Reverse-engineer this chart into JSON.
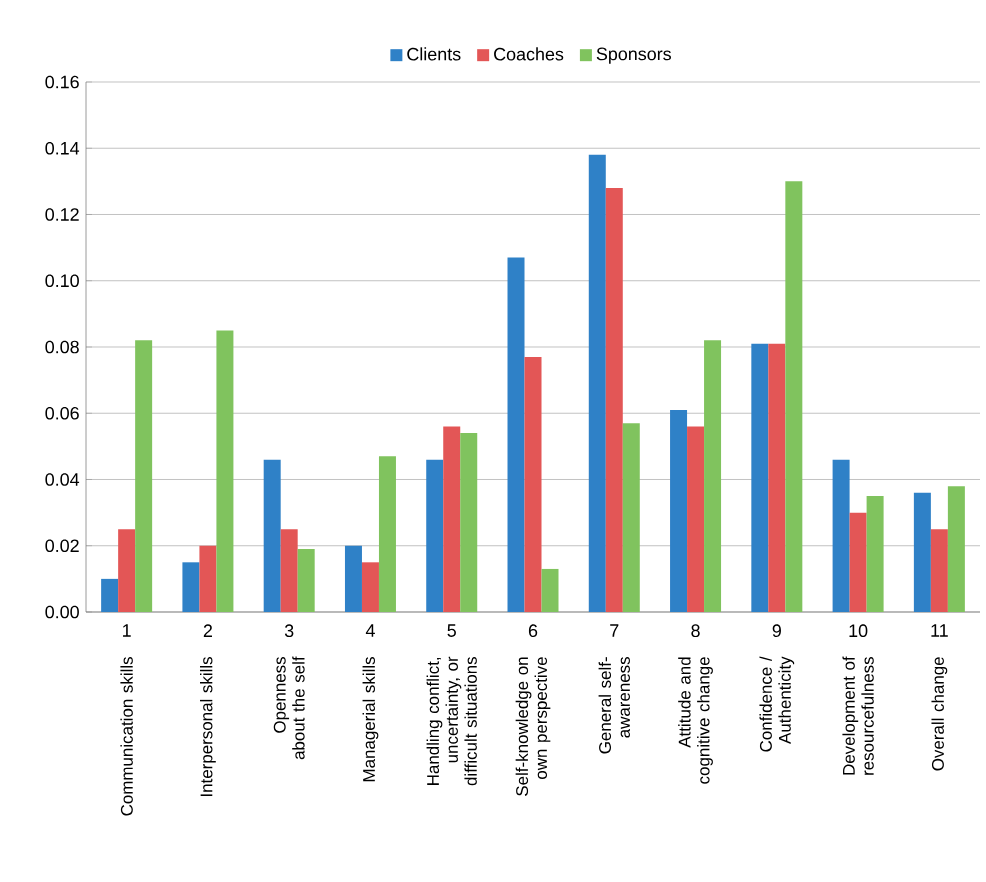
{
  "chart_data": {
    "type": "bar",
    "categories": [
      "Communication skills",
      "Interpersonal skills",
      "Openness about the self",
      "Managerial skills",
      "Handling conflict, uncertainty, or difficult situations",
      "Self-knowledge on own perspective",
      "General self-awareness",
      "Attitude and cognitive change",
      "Confidence / Authenticity",
      "Development of resourcefulness",
      "Overall change"
    ],
    "annotations": [
      "1",
      "2",
      "3",
      "4",
      "5",
      "6",
      "7",
      "8",
      "9",
      "10",
      "11"
    ],
    "series": [
      {
        "name": "Clients",
        "color": "#2f81c7",
        "values": [
          0.01,
          0.015,
          0.046,
          0.02,
          0.046,
          0.107,
          0.138,
          0.061,
          0.081,
          0.046,
          0.036
        ]
      },
      {
        "name": "Coaches",
        "color": "#e35656",
        "values": [
          0.025,
          0.02,
          0.025,
          0.015,
          0.056,
          0.077,
          0.128,
          0.056,
          0.081,
          0.03,
          0.025
        ]
      },
      {
        "name": "Sponsors",
        "color": "#80c35e",
        "values": [
          0.082,
          0.085,
          0.019,
          0.047,
          0.054,
          0.013,
          0.057,
          0.082,
          0.13,
          0.035,
          0.038
        ]
      }
    ],
    "ylim": [
      0,
      0.16
    ],
    "yticks": [
      {
        "value": 0,
        "label": "0.00"
      },
      {
        "value": 0.02,
        "label": "0.02"
      },
      {
        "value": 0.04,
        "label": "0.04"
      },
      {
        "value": 0.06,
        "label": "0.06"
      },
      {
        "value": 0.08,
        "label": "0.08"
      },
      {
        "value": 0.1,
        "label": "0.10"
      },
      {
        "value": 0.12,
        "label": "0.12"
      },
      {
        "value": 0.14,
        "label": "0.14"
      },
      {
        "value": 0.16,
        "label": "0.16"
      }
    ],
    "grid": "y",
    "legend": "top"
  }
}
